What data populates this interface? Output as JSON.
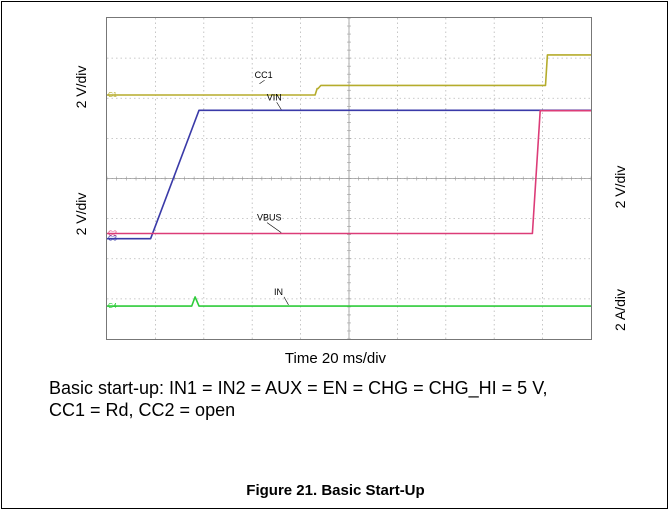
{
  "chart_data": {
    "type": "line",
    "title": "",
    "xlabel": "Time 20 ms/div",
    "x_divisions": 10,
    "y_divisions": 8,
    "y_scale_labels": {
      "cc1_vin_channel": "2 V/div",
      "vbus_channel": "2 V/div",
      "vbus_right": "2 V/div",
      "in_right": "2 A/div"
    },
    "grid": true,
    "series": [
      {
        "name": "CC1",
        "color": "#b5ac2c",
        "marker": "C1",
        "x_div": [
          0,
          4.3,
          4.34,
          4.36,
          4.42,
          4.45,
          9.06,
          9.1,
          10
        ],
        "y_div": [
          6.08,
          6.08,
          6.24,
          6.24,
          6.32,
          6.32,
          6.32,
          7.08,
          7.08
        ]
      },
      {
        "name": "VIN",
        "color": "#3a3aa8",
        "marker": "C3",
        "x_div": [
          0,
          0.9,
          1.9,
          10
        ],
        "y_div": [
          2.5,
          2.5,
          5.7,
          5.7
        ]
      },
      {
        "name": "VBUS",
        "color": "#dc3c78",
        "marker": "C2",
        "x_div": [
          0,
          8.79,
          8.95,
          10
        ],
        "y_div": [
          2.63,
          2.63,
          5.69,
          5.69
        ]
      },
      {
        "name": "IN",
        "color": "#2ecc3a",
        "marker": "C4",
        "x_div": [
          0,
          1.75,
          1.82,
          1.9,
          10
        ],
        "y_div": [
          0.82,
          0.82,
          1.05,
          0.82,
          0.82
        ]
      }
    ]
  },
  "caption": {
    "line1": "Basic start-up: IN1 = IN2 = AUX = EN = CHG = CHG_HI = 5 V,",
    "line2": "CC1 = Rd, CC2 = open"
  },
  "figure_title": "Figure 21. Basic Start-Up"
}
